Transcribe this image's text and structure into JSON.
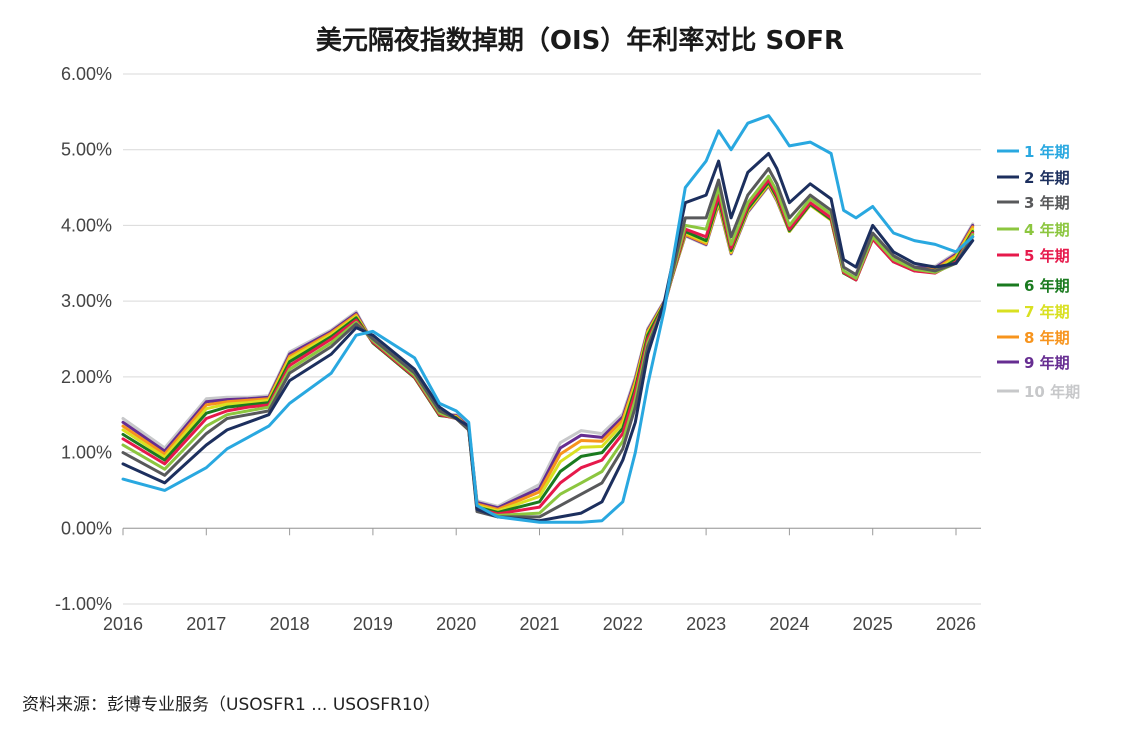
{
  "chart_data": {
    "type": "line",
    "title": "美元隔夜指数掉期（OIS）年利率对比 SOFR",
    "xlabel": "",
    "ylabel": "",
    "ylim": [
      -1.0,
      6.0
    ],
    "xlim": [
      2016.0,
      2026.3
    ],
    "y_ticks": [
      "-1.00%",
      "0.00%",
      "1.00%",
      "2.00%",
      "3.00%",
      "4.00%",
      "5.00%",
      "6.00%"
    ],
    "y_tick_values": [
      -1,
      0,
      1,
      2,
      3,
      4,
      5,
      6
    ],
    "x_ticks": [
      "2016",
      "2017",
      "2018",
      "2019",
      "2020",
      "2021",
      "2022",
      "2023",
      "2024",
      "2025",
      "2026"
    ],
    "x_tick_values": [
      2016,
      2017,
      2018,
      2019,
      2020,
      2021,
      2022,
      2023,
      2024,
      2025,
      2026
    ],
    "grid": "horizontal",
    "legend_position": "right",
    "x": [
      2016.0,
      2016.5,
      2017.0,
      2017.25,
      2017.5,
      2017.75,
      2018.0,
      2018.5,
      2018.8,
      2019.0,
      2019.5,
      2019.8,
      2020.0,
      2020.15,
      2020.25,
      2020.5,
      2021.0,
      2021.25,
      2021.5,
      2021.75,
      2022.0,
      2022.15,
      2022.3,
      2022.5,
      2022.75,
      2023.0,
      2023.15,
      2023.3,
      2023.5,
      2023.75,
      2023.85,
      2024.0,
      2024.25,
      2024.5,
      2024.65,
      2024.8,
      2025.0,
      2025.25,
      2025.5,
      2025.75,
      2026.0,
      2026.2
    ],
    "series": [
      {
        "name": "1 年期",
        "color": "#29a8e0",
        "values": [
          0.65,
          0.5,
          0.8,
          1.05,
          1.2,
          1.35,
          1.65,
          2.05,
          2.55,
          2.6,
          2.25,
          1.65,
          1.55,
          1.4,
          0.3,
          0.15,
          0.08,
          0.08,
          0.08,
          0.1,
          0.35,
          1.0,
          1.9,
          2.9,
          4.5,
          4.85,
          5.25,
          5.0,
          5.35,
          5.45,
          5.3,
          5.05,
          5.1,
          4.95,
          4.2,
          4.1,
          4.25,
          3.9,
          3.8,
          3.75,
          3.65,
          3.85
        ]
      },
      {
        "name": "2 年期",
        "color": "#1c2f5e",
        "values": [
          0.85,
          0.6,
          1.1,
          1.3,
          1.4,
          1.5,
          1.95,
          2.3,
          2.65,
          2.55,
          2.1,
          1.6,
          1.45,
          1.35,
          0.25,
          0.15,
          0.1,
          0.15,
          0.2,
          0.35,
          0.9,
          1.4,
          2.3,
          3.0,
          4.3,
          4.4,
          4.85,
          4.1,
          4.7,
          4.95,
          4.75,
          4.3,
          4.55,
          4.35,
          3.55,
          3.45,
          4.0,
          3.65,
          3.5,
          3.45,
          3.5,
          3.8
        ]
      },
      {
        "name": "3 年期",
        "color": "#58595b",
        "values": [
          1.0,
          0.7,
          1.25,
          1.45,
          1.5,
          1.55,
          2.05,
          2.4,
          2.7,
          2.5,
          2.05,
          1.55,
          1.45,
          1.3,
          0.22,
          0.15,
          0.15,
          0.3,
          0.45,
          0.6,
          1.05,
          1.6,
          2.4,
          2.95,
          4.1,
          4.1,
          4.6,
          3.85,
          4.4,
          4.75,
          4.55,
          4.1,
          4.4,
          4.2,
          3.45,
          3.35,
          3.9,
          3.6,
          3.45,
          3.4,
          3.5,
          3.85
        ]
      },
      {
        "name": "4 年期",
        "color": "#8cc63f",
        "values": [
          1.1,
          0.78,
          1.35,
          1.5,
          1.55,
          1.6,
          2.1,
          2.45,
          2.72,
          2.48,
          2.02,
          1.52,
          1.45,
          1.3,
          0.24,
          0.17,
          0.2,
          0.45,
          0.6,
          0.75,
          1.15,
          1.7,
          2.45,
          2.95,
          4.0,
          3.95,
          4.5,
          3.75,
          4.3,
          4.65,
          4.45,
          4.0,
          4.35,
          4.15,
          3.4,
          3.3,
          3.85,
          3.55,
          3.42,
          3.38,
          3.5,
          3.88
        ]
      },
      {
        "name": "5 年期",
        "color": "#e6194b",
        "values": [
          1.18,
          0.85,
          1.45,
          1.55,
          1.6,
          1.63,
          2.15,
          2.5,
          2.75,
          2.46,
          2.0,
          1.5,
          1.45,
          1.3,
          0.26,
          0.19,
          0.28,
          0.6,
          0.8,
          0.9,
          1.25,
          1.8,
          2.5,
          2.95,
          3.95,
          3.85,
          4.4,
          3.7,
          4.25,
          4.6,
          4.4,
          3.95,
          4.3,
          4.1,
          3.38,
          3.28,
          3.82,
          3.52,
          3.4,
          3.37,
          3.52,
          3.9
        ]
      },
      {
        "name": "6 年期",
        "color": "#1a7a1f",
        "values": [
          1.24,
          0.9,
          1.52,
          1.6,
          1.63,
          1.66,
          2.2,
          2.53,
          2.78,
          2.45,
          1.99,
          1.49,
          1.46,
          1.31,
          0.28,
          0.21,
          0.35,
          0.75,
          0.95,
          1.0,
          1.32,
          1.85,
          2.55,
          2.97,
          3.92,
          3.8,
          4.35,
          3.67,
          4.22,
          4.57,
          4.37,
          3.93,
          4.28,
          4.08,
          3.37,
          3.28,
          3.82,
          3.52,
          3.4,
          3.38,
          3.55,
          3.92
        ]
      },
      {
        "name": "7 年期",
        "color": "#d9e021",
        "values": [
          1.3,
          0.94,
          1.58,
          1.64,
          1.66,
          1.69,
          2.24,
          2.56,
          2.8,
          2.45,
          1.99,
          1.49,
          1.47,
          1.32,
          0.3,
          0.23,
          0.42,
          0.88,
          1.07,
          1.08,
          1.38,
          1.9,
          2.58,
          2.98,
          3.9,
          3.78,
          4.32,
          3.65,
          4.2,
          4.55,
          4.35,
          3.92,
          4.27,
          4.07,
          3.37,
          3.28,
          3.83,
          3.53,
          3.41,
          3.4,
          3.58,
          3.95
        ]
      },
      {
        "name": "8 年期",
        "color": "#f7941d",
        "values": [
          1.35,
          0.98,
          1.63,
          1.67,
          1.69,
          1.71,
          2.27,
          2.58,
          2.82,
          2.45,
          1.99,
          1.49,
          1.48,
          1.33,
          0.32,
          0.25,
          0.48,
          0.98,
          1.16,
          1.15,
          1.43,
          1.94,
          2.6,
          2.99,
          3.88,
          3.76,
          4.3,
          3.64,
          4.19,
          4.54,
          4.34,
          3.92,
          4.27,
          4.07,
          3.38,
          3.29,
          3.84,
          3.55,
          3.43,
          3.42,
          3.6,
          3.98
        ]
      },
      {
        "name": "9 年期",
        "color": "#662d91",
        "values": [
          1.4,
          1.02,
          1.67,
          1.7,
          1.71,
          1.73,
          2.3,
          2.6,
          2.84,
          2.45,
          1.99,
          1.5,
          1.49,
          1.34,
          0.34,
          0.27,
          0.53,
          1.06,
          1.23,
          1.2,
          1.47,
          1.97,
          2.62,
          3.0,
          3.87,
          3.75,
          4.29,
          3.63,
          4.18,
          4.53,
          4.33,
          3.92,
          4.27,
          4.08,
          3.39,
          3.3,
          3.85,
          3.56,
          3.45,
          3.44,
          3.62,
          4.0
        ]
      },
      {
        "name": "10 年期",
        "color": "#c7c8ca",
        "values": [
          1.45,
          1.06,
          1.71,
          1.73,
          1.73,
          1.75,
          2.33,
          2.62,
          2.86,
          2.46,
          2.0,
          1.51,
          1.5,
          1.35,
          0.36,
          0.29,
          0.58,
          1.13,
          1.29,
          1.25,
          1.51,
          2.0,
          2.64,
          3.01,
          3.86,
          3.74,
          4.28,
          3.62,
          4.17,
          4.52,
          4.32,
          3.92,
          4.27,
          4.09,
          3.4,
          3.31,
          3.86,
          3.57,
          3.47,
          3.46,
          3.64,
          4.02
        ]
      }
    ]
  },
  "title": "美元隔夜指数掉期（OIS）年利率对比 SOFR",
  "source": "资料来源：彭博专业服务（USOSFR1 ... USOSFR10）"
}
